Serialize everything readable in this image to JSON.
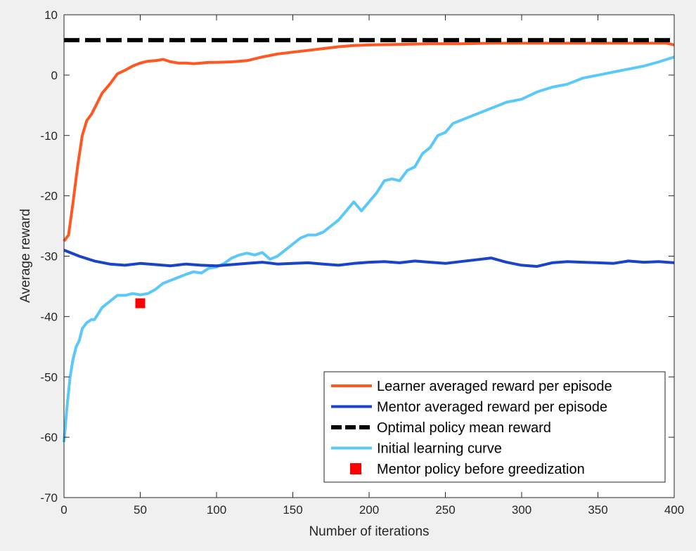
{
  "chart_data": {
    "type": "line",
    "title": "",
    "xlabel": "Number of iterations",
    "ylabel": "Average reward",
    "xlim": [
      0,
      400
    ],
    "ylim": [
      -70,
      10
    ],
    "xticks": [
      0,
      50,
      100,
      150,
      200,
      250,
      300,
      350,
      400
    ],
    "yticks": [
      -70,
      -60,
      -50,
      -40,
      -30,
      -20,
      -10,
      0,
      10
    ],
    "grid": false,
    "legend_position": "bottom-right",
    "series": [
      {
        "name": "Learner averaged reward per episode",
        "color": "#ff5722",
        "style": "solid",
        "x": [
          0,
          3,
          6,
          9,
          12,
          15,
          18,
          21,
          25,
          30,
          35,
          40,
          45,
          50,
          55,
          60,
          65,
          70,
          75,
          80,
          85,
          90,
          95,
          100,
          110,
          120,
          130,
          140,
          150,
          160,
          170,
          180,
          190,
          200,
          220,
          240,
          260,
          280,
          300,
          320,
          340,
          360,
          380,
          395,
          400
        ],
        "y": [
          -27.5,
          -26.5,
          -21,
          -15,
          -10,
          -7.5,
          -6.5,
          -5,
          -3,
          -1.5,
          0.2,
          0.8,
          1.5,
          2.0,
          2.3,
          2.4,
          2.6,
          2.2,
          2.0,
          2.0,
          1.9,
          2.0,
          2.1,
          2.1,
          2.2,
          2.4,
          3.0,
          3.5,
          3.8,
          4.1,
          4.4,
          4.7,
          4.9,
          5.0,
          5.1,
          5.2,
          5.2,
          5.3,
          5.3,
          5.3,
          5.3,
          5.3,
          5.3,
          5.3,
          5.0
        ]
      },
      {
        "name": "Mentor averaged reward per episode",
        "color": "#1a44c8",
        "style": "solid",
        "x": [
          0,
          10,
          20,
          30,
          40,
          50,
          60,
          70,
          80,
          90,
          100,
          110,
          120,
          130,
          140,
          150,
          160,
          170,
          180,
          190,
          200,
          210,
          220,
          230,
          240,
          250,
          260,
          270,
          280,
          290,
          300,
          310,
          320,
          330,
          340,
          350,
          360,
          370,
          380,
          390,
          400
        ],
        "y": [
          -29.0,
          -30.0,
          -30.8,
          -31.3,
          -31.5,
          -31.2,
          -31.4,
          -31.6,
          -31.3,
          -31.5,
          -31.6,
          -31.4,
          -31.2,
          -31.0,
          -31.3,
          -31.2,
          -31.1,
          -31.3,
          -31.5,
          -31.2,
          -31.0,
          -30.9,
          -31.1,
          -30.8,
          -31.0,
          -31.2,
          -30.9,
          -30.6,
          -30.3,
          -31.0,
          -31.5,
          -31.7,
          -31.1,
          -30.9,
          -31.0,
          -31.1,
          -31.2,
          -30.8,
          -31.0,
          -30.9,
          -31.1
        ]
      },
      {
        "name": "Optimal policy mean reward",
        "color": "#000000",
        "style": "dashed",
        "x": [
          0,
          400
        ],
        "y": [
          5.8,
          5.8
        ]
      },
      {
        "name": "Initial learning curve",
        "color": "#5bc8f8",
        "style": "solid",
        "x": [
          0,
          2,
          4,
          6,
          8,
          10,
          12,
          15,
          18,
          20,
          25,
          30,
          35,
          40,
          45,
          50,
          55,
          60,
          65,
          70,
          75,
          80,
          85,
          90,
          95,
          100,
          105,
          110,
          115,
          120,
          125,
          130,
          135,
          140,
          145,
          150,
          155,
          160,
          165,
          170,
          175,
          180,
          185,
          190,
          195,
          200,
          205,
          210,
          215,
          220,
          225,
          230,
          235,
          240,
          245,
          250,
          255,
          260,
          270,
          280,
          290,
          300,
          310,
          320,
          330,
          340,
          350,
          360,
          370,
          380,
          390,
          400
        ],
        "y": [
          -60.8,
          -55,
          -50,
          -47,
          -45,
          -44,
          -42,
          -41,
          -40.5,
          -40.5,
          -38.5,
          -37.5,
          -36.5,
          -36.5,
          -36.2,
          -36.4,
          -36.2,
          -35.5,
          -34.5,
          -34.0,
          -33.5,
          -33.0,
          -32.6,
          -32.8,
          -32.0,
          -31.8,
          -31.2,
          -30.3,
          -29.8,
          -29.5,
          -29.8,
          -29.4,
          -30.5,
          -30.0,
          -29.0,
          -28.0,
          -27.0,
          -26.5,
          -26.5,
          -26.0,
          -25.0,
          -24.0,
          -22.5,
          -21.0,
          -22.5,
          -21.0,
          -19.5,
          -17.5,
          -17.2,
          -17.5,
          -15.8,
          -15.2,
          -13.0,
          -12.0,
          -10.0,
          -9.5,
          -8.0,
          -7.5,
          -6.5,
          -5.5,
          -4.5,
          -4.0,
          -2.8,
          -2.0,
          -1.5,
          -0.5,
          0.0,
          0.5,
          1.0,
          1.5,
          2.2,
          3.0
        ]
      },
      {
        "name": "Mentor policy before greedization",
        "color": "#ff0000",
        "style": "marker-square",
        "x": [
          50
        ],
        "y": [
          -37.8
        ]
      }
    ]
  }
}
